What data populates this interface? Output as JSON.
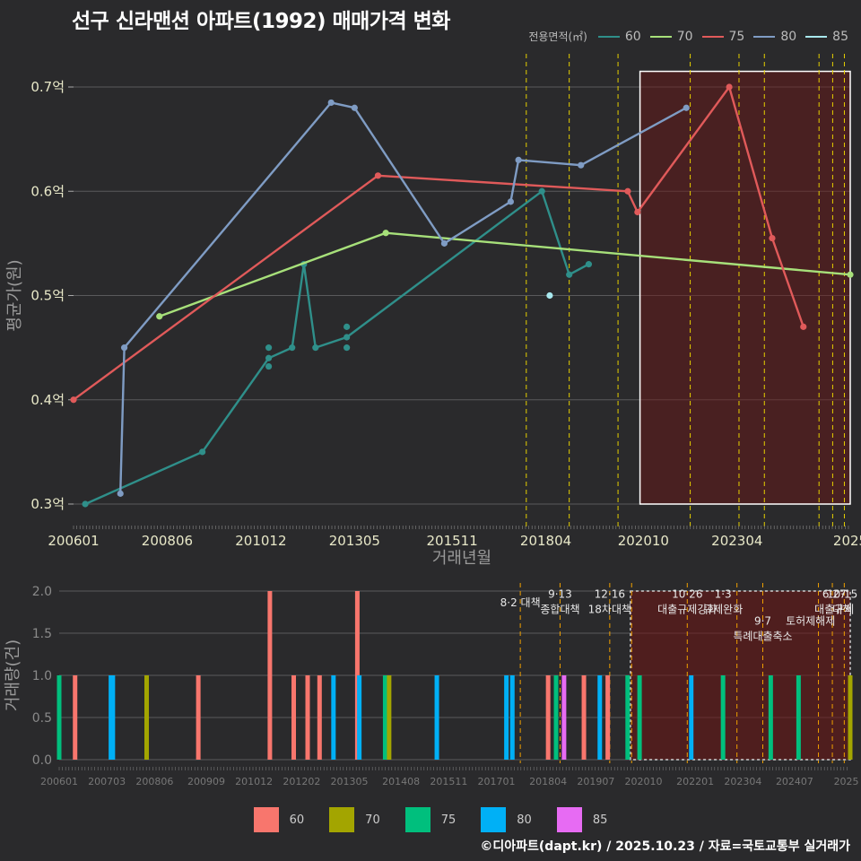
{
  "title": "선구 신라맨션 아파트(1992) 매매가격 변화",
  "footer": "©디아파트(dapt.kr) / 2025.10.23 / 자료=국토교통부 실거래가",
  "colors": {
    "60": "#2f8f8a",
    "70": "#a7e07a",
    "75": "#e05a5a",
    "80": "#7f9cc4",
    "85": "#a8e8ee"
  },
  "bar_colors": {
    "60": "#f8766d",
    "70": "#a3a500",
    "75": "#00bf7d",
    "80": "#00b0f6",
    "85": "#e76bf3"
  },
  "legend_top": {
    "title": "전용면적(㎡)",
    "items": [
      "60",
      "70",
      "75",
      "80",
      "85"
    ]
  },
  "legend_bottom": {
    "items": [
      "60",
      "70",
      "75",
      "80",
      "85"
    ]
  },
  "chart_data": [
    {
      "type": "line",
      "title": "선구 신라맨션 아파트(1992) 매매가격 변화",
      "xlabel": "거래년월",
      "ylabel": "평균가(원)",
      "xlim": [
        2006.0,
        2025.9
      ],
      "ylim": [
        0.3,
        0.7
      ],
      "x_ticks": [
        {
          "v": 2006.0,
          "l": "200601"
        },
        {
          "v": 2008.4,
          "l": "200806"
        },
        {
          "v": 2010.8,
          "l": "201012"
        },
        {
          "v": 2013.2,
          "l": "201305"
        },
        {
          "v": 2015.7,
          "l": "201511"
        },
        {
          "v": 2018.1,
          "l": "201804"
        },
        {
          "v": 2020.6,
          "l": "202010"
        },
        {
          "v": 2023.0,
          "l": "202304"
        },
        {
          "v": 2025.9,
          "l": "2025"
        }
      ],
      "y_ticks": [
        {
          "v": 0.3,
          "l": "0.3억"
        },
        {
          "v": 0.4,
          "l": "0.4억"
        },
        {
          "v": 0.5,
          "l": "0.5억"
        },
        {
          "v": 0.6,
          "l": "0.6억"
        },
        {
          "v": 0.7,
          "l": "0.7억"
        }
      ],
      "series": [
        {
          "name": "60",
          "points": [
            [
              2006.3,
              0.3
            ],
            [
              2009.3,
              0.35
            ],
            [
              2011.0,
              0.44
            ],
            [
              2011.6,
              0.45
            ],
            [
              2011.9,
              0.53
            ],
            [
              2012.2,
              0.45
            ],
            [
              2013.0,
              0.46
            ],
            [
              2018.0,
              0.6
            ],
            [
              2018.7,
              0.52
            ],
            [
              2019.2,
              0.53
            ]
          ],
          "extra_points": [
            [
              2011.0,
              0.45
            ],
            [
              2011.0,
              0.432
            ],
            [
              2013.0,
              0.47
            ],
            [
              2013.0,
              0.45
            ]
          ]
        },
        {
          "name": "70",
          "points": [
            [
              2008.2,
              0.48
            ],
            [
              2014.0,
              0.56
            ],
            [
              2025.9,
              0.52
            ]
          ]
        },
        {
          "name": "75",
          "points": [
            [
              2006.0,
              0.4
            ],
            [
              2013.8,
              0.615
            ],
            [
              2020.2,
              0.6
            ],
            [
              2020.45,
              0.58
            ],
            [
              2022.8,
              0.7
            ],
            [
              2023.9,
              0.555
            ],
            [
              2024.7,
              0.47
            ]
          ]
        },
        {
          "name": "80",
          "points": [
            [
              2007.2,
              0.31
            ],
            [
              2007.3,
              0.45
            ],
            [
              2012.6,
              0.685
            ],
            [
              2013.2,
              0.68
            ],
            [
              2015.5,
              0.55
            ],
            [
              2017.2,
              0.59
            ],
            [
              2017.4,
              0.63
            ],
            [
              2019.0,
              0.625
            ],
            [
              2021.7,
              0.68
            ]
          ]
        },
        {
          "name": "85",
          "points": [
            [
              2018.2,
              0.5
            ]
          ]
        }
      ],
      "policy_lines": [
        2017.6,
        2018.7,
        2019.95,
        2021.8,
        2023.05,
        2023.7,
        2025.1,
        2025.45,
        2025.75
      ],
      "highlight": {
        "x": [
          2020.1,
          2025.9
        ],
        "y": [
          0.3,
          0.715
        ]
      }
    },
    {
      "type": "bar",
      "xlabel": "",
      "ylabel": "거래량(건)",
      "xlim": [
        2006.0,
        2025.9
      ],
      "ylim": [
        0,
        2
      ],
      "x_ticks": [
        {
          "v": 2006.0,
          "l": "200601"
        },
        {
          "v": 2007.2,
          "l": "200703"
        },
        {
          "v": 2008.4,
          "l": "200806"
        },
        {
          "v": 2009.7,
          "l": "200909"
        },
        {
          "v": 2010.9,
          "l": "201012"
        },
        {
          "v": 2012.1,
          "l": "201202"
        },
        {
          "v": 2013.3,
          "l": "201305"
        },
        {
          "v": 2014.6,
          "l": "201408"
        },
        {
          "v": 2015.8,
          "l": "201511"
        },
        {
          "v": 2017.0,
          "l": "201701"
        },
        {
          "v": 2018.3,
          "l": "201804"
        },
        {
          "v": 2019.5,
          "l": "201907"
        },
        {
          "v": 2020.7,
          "l": "202010"
        },
        {
          "v": 2022.0,
          "l": "202201"
        },
        {
          "v": 2023.2,
          "l": "202304"
        },
        {
          "v": 2024.5,
          "l": "202407"
        },
        {
          "v": 2025.8,
          "l": "2025"
        }
      ],
      "y_ticks": [
        {
          "v": 0.0,
          "l": "0.0"
        },
        {
          "v": 0.5,
          "l": "0.5"
        },
        {
          "v": 1.0,
          "l": "1.0"
        },
        {
          "v": 1.5,
          "l": "1.5"
        },
        {
          "v": 2.0,
          "l": "2.0"
        }
      ],
      "bars": [
        {
          "x": 2006.0,
          "s": "75",
          "v": 1
        },
        {
          "x": 2006.4,
          "s": "60",
          "v": 1
        },
        {
          "x": 2007.3,
          "s": "80",
          "v": 1
        },
        {
          "x": 2007.35,
          "s": "80",
          "v": 1
        },
        {
          "x": 2008.2,
          "s": "70",
          "v": 1
        },
        {
          "x": 2009.5,
          "s": "60",
          "v": 1
        },
        {
          "x": 2011.3,
          "s": "60",
          "v": 2
        },
        {
          "x": 2011.9,
          "s": "60",
          "v": 1
        },
        {
          "x": 2012.25,
          "s": "60",
          "v": 1
        },
        {
          "x": 2012.55,
          "s": "60",
          "v": 1
        },
        {
          "x": 2012.9,
          "s": "80",
          "v": 1
        },
        {
          "x": 2013.5,
          "s": "60",
          "v": 2
        },
        {
          "x": 2013.55,
          "s": "80",
          "v": 1
        },
        {
          "x": 2014.2,
          "s": "75",
          "v": 1
        },
        {
          "x": 2014.3,
          "s": "70",
          "v": 1
        },
        {
          "x": 2015.5,
          "s": "80",
          "v": 1
        },
        {
          "x": 2017.25,
          "s": "80",
          "v": 1
        },
        {
          "x": 2017.4,
          "s": "80",
          "v": 1
        },
        {
          "x": 2018.3,
          "s": "60",
          "v": 1
        },
        {
          "x": 2018.5,
          "s": "75",
          "v": 1
        },
        {
          "x": 2018.7,
          "s": "85",
          "v": 1
        },
        {
          "x": 2019.2,
          "s": "60",
          "v": 1
        },
        {
          "x": 2019.6,
          "s": "80",
          "v": 1
        },
        {
          "x": 2019.8,
          "s": "60",
          "v": 1
        },
        {
          "x": 2020.3,
          "s": "75",
          "v": 1
        },
        {
          "x": 2020.6,
          "s": "75",
          "v": 1
        },
        {
          "x": 2021.9,
          "s": "80",
          "v": 1
        },
        {
          "x": 2022.7,
          "s": "75",
          "v": 1
        },
        {
          "x": 2023.9,
          "s": "75",
          "v": 1
        },
        {
          "x": 2024.6,
          "s": "75",
          "v": 1
        },
        {
          "x": 2025.9,
          "s": "70",
          "v": 1
        }
      ],
      "policy_lines": [
        2017.6,
        2018.6,
        2019.85,
        2020.4,
        2021.8,
        2023.05,
        2023.7,
        2025.1,
        2025.45,
        2025.75
      ],
      "highlight": {
        "x": [
          2020.1,
          2025.9
        ],
        "y": [
          0,
          2
        ]
      },
      "annotations": [
        {
          "x": 2017.6,
          "lines": [
            "8·2 대책"
          ],
          "y": 1.82
        },
        {
          "x": 2018.6,
          "lines": [
            "9·13",
            "종합대책"
          ],
          "y": 1.92
        },
        {
          "x": 2019.85,
          "lines": [
            "12·16",
            "18차대책"
          ],
          "y": 1.92
        },
        {
          "x": 2021.8,
          "lines": [
            "10·26",
            "대출규제강화"
          ],
          "y": 1.92
        },
        {
          "x": 2022.7,
          "lines": [
            "1·3",
            "규제완화"
          ],
          "y": 1.92
        },
        {
          "x": 2023.7,
          "lines": [
            "9·7",
            "특례대출축소"
          ],
          "y": 1.6
        },
        {
          "x": 2024.9,
          "lines": [
            "토허제해제"
          ],
          "y": 1.6
        },
        {
          "x": 2025.5,
          "lines": [
            "6·27",
            "대출규제"
          ],
          "y": 1.92
        },
        {
          "x": 2025.7,
          "lines": [
            "10·15",
            "대책"
          ],
          "y": 1.92
        }
      ]
    }
  ]
}
